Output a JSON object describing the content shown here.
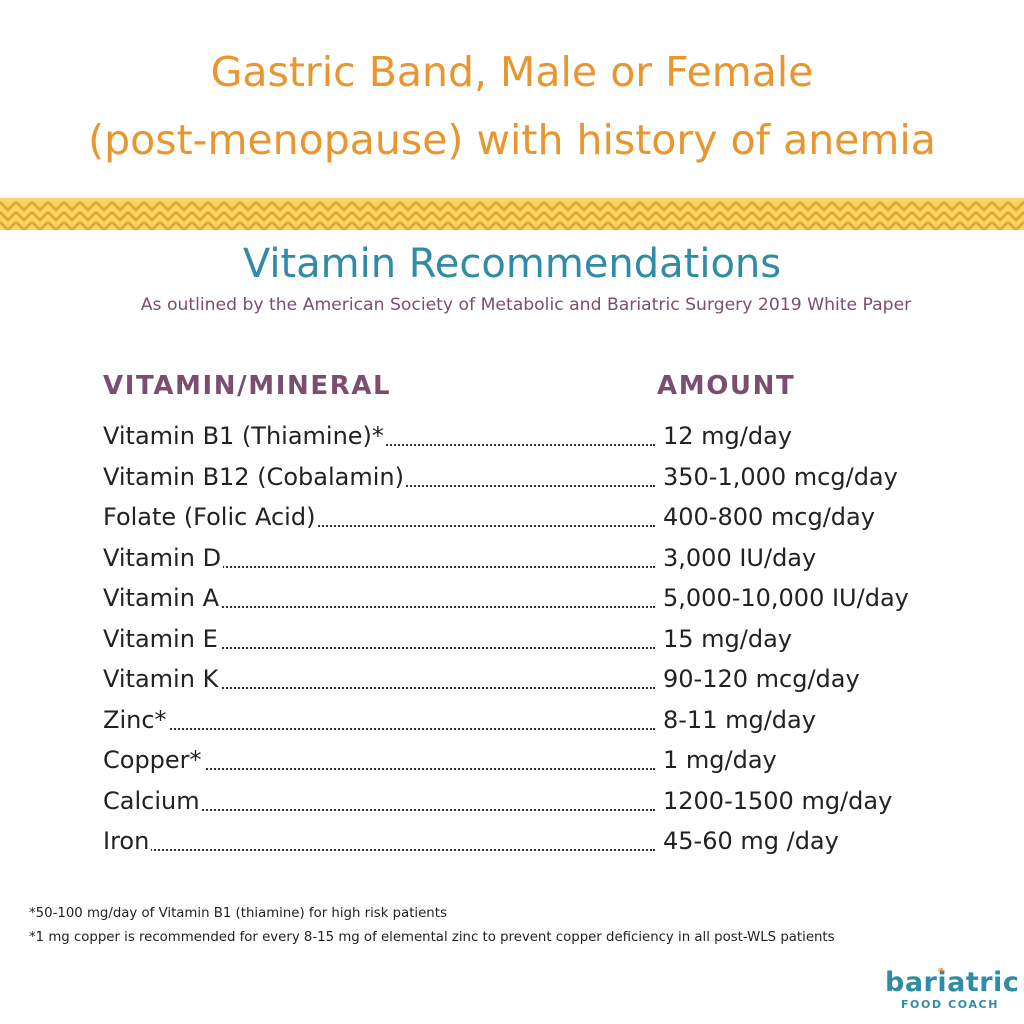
{
  "title": {
    "line1": "Gastric Band, Male or Female",
    "line2": "(post-menopause) with history of anemia"
  },
  "colors": {
    "title": "#E8962F",
    "subtitle": "#2F8BA6",
    "accent_purple": "#7B4E70",
    "band_yellow": "#F5C84A"
  },
  "subtitle": "Vitamin Recommendations",
  "source": "As outlined by the American Society of Metabolic and Bariatric Surgery 2019 White Paper",
  "table": {
    "headers": {
      "name": "VITAMIN/MINERAL",
      "amount": "AMOUNT"
    },
    "rows": [
      {
        "name": "Vitamin B1 (Thiamine)*",
        "amount": "12 mg/day"
      },
      {
        "name": "Vitamin B12 (Cobalamin)",
        "amount": "350-1,000 mcg/day"
      },
      {
        "name": "Folate (Folic Acid)",
        "amount": "400-800 mcg/day"
      },
      {
        "name": "Vitamin D",
        "amount": "3,000 IU/day"
      },
      {
        "name": "Vitamin A",
        "amount": "5,000-10,000 IU/day"
      },
      {
        "name": "Vitamin E",
        "amount": "15 mg/day"
      },
      {
        "name": "Vitamin K",
        "amount": "90-120 mcg/day"
      },
      {
        "name": "Zinc*",
        "amount": "8-11 mg/day"
      },
      {
        "name": "Copper*",
        "amount": "1 mg/day"
      },
      {
        "name": "Calcium",
        "amount": "1200-1500 mg/day"
      },
      {
        "name": "Iron",
        "amount": "45-60 mg /day"
      }
    ]
  },
  "footnotes": [
    "*50-100 mg/day of Vitamin B1 (thiamine) for high risk patients",
    "*1 mg copper is recommended for every 8-15 mg of elemental zinc to prevent copper deficiency in all post-WLS patients"
  ],
  "logo": {
    "word": "bariatric",
    "sub": "FOOD COACH",
    "icon": "leaf-icon"
  }
}
